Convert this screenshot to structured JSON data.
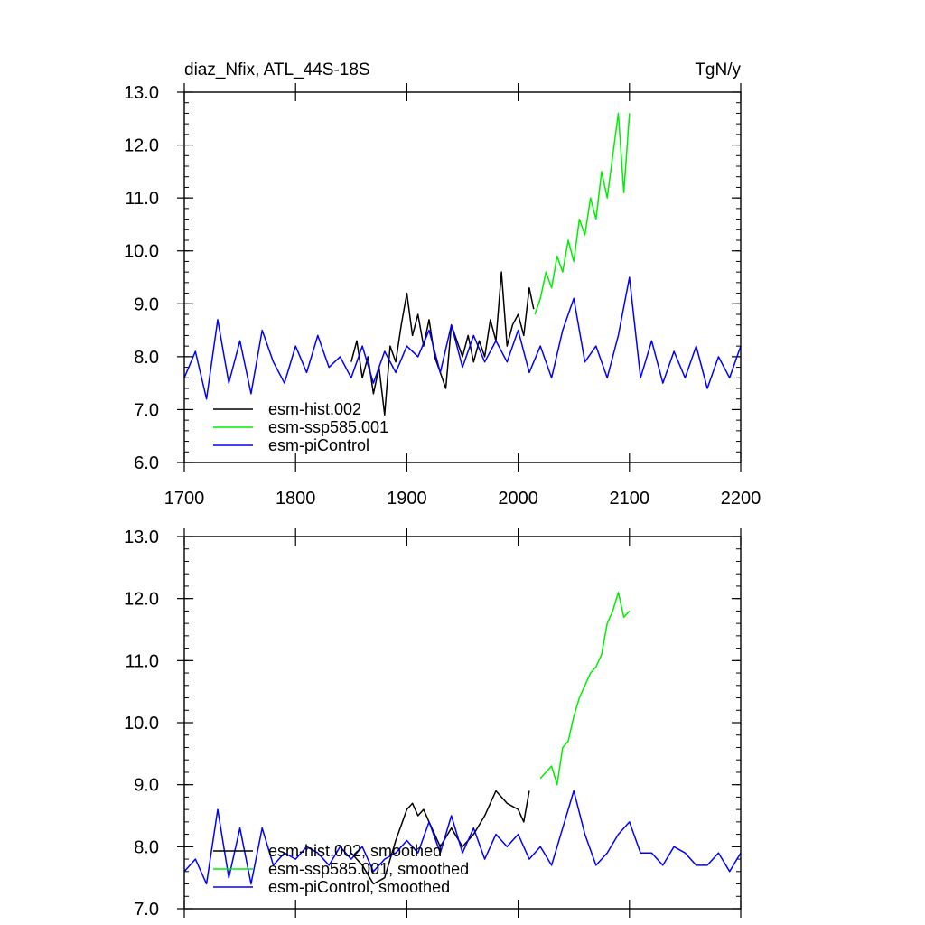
{
  "chart_data": [
    {
      "type": "line",
      "title": "diaz_Nfix, ATL_44S-18S",
      "units": "TgN/y",
      "xlabel": "",
      "ylabel": "",
      "xlim": [
        1700,
        2200
      ],
      "ylim": [
        6.0,
        13.0
      ],
      "x_ticks": [
        1700,
        1800,
        1900,
        2000,
        2100,
        2200
      ],
      "x_tick_labels": [
        "1700",
        "1800",
        "1900",
        "2000",
        "2100",
        "2200"
      ],
      "y_ticks": [
        6.0,
        7.0,
        8.0,
        9.0,
        10.0,
        11.0,
        12.0,
        13.0
      ],
      "y_tick_labels": [
        "6.0",
        "7.0",
        "8.0",
        "9.0",
        "10.0",
        "11.0",
        "12.0",
        "13.0"
      ],
      "legend_position": "lower-left",
      "series": [
        {
          "name": "esm-hist.002",
          "color": "#000000",
          "x": [
            1850,
            1855,
            1860,
            1865,
            1870,
            1875,
            1880,
            1885,
            1890,
            1895,
            1900,
            1905,
            1910,
            1915,
            1920,
            1925,
            1930,
            1935,
            1940,
            1945,
            1950,
            1955,
            1960,
            1965,
            1970,
            1975,
            1980,
            1985,
            1990,
            1995,
            2000,
            2005,
            2010,
            2014
          ],
          "values": [
            7.9,
            8.3,
            7.6,
            8.0,
            7.3,
            7.8,
            6.9,
            8.2,
            7.9,
            8.6,
            9.2,
            8.4,
            8.8,
            8.2,
            8.7,
            8.0,
            7.7,
            7.4,
            8.6,
            8.3,
            8.0,
            8.4,
            7.9,
            8.3,
            8.0,
            8.7,
            8.3,
            9.6,
            8.2,
            8.6,
            8.8,
            8.4,
            9.3,
            8.9
          ]
        },
        {
          "name": "esm-ssp585.001",
          "color": "#00ee00",
          "x": [
            2015,
            2020,
            2025,
            2030,
            2035,
            2040,
            2045,
            2050,
            2055,
            2060,
            2065,
            2070,
            2075,
            2080,
            2085,
            2090,
            2095,
            2100
          ],
          "values": [
            8.8,
            9.1,
            9.6,
            9.3,
            9.9,
            9.6,
            10.2,
            9.8,
            10.6,
            10.3,
            11.0,
            10.6,
            11.5,
            11.0,
            11.8,
            12.6,
            11.1,
            12.6
          ]
        },
        {
          "name": "esm-piControl",
          "color": "#0000ff",
          "x": [
            1700,
            1710,
            1720,
            1730,
            1740,
            1750,
            1760,
            1770,
            1780,
            1790,
            1800,
            1810,
            1820,
            1830,
            1840,
            1850,
            1860,
            1870,
            1880,
            1890,
            1900,
            1910,
            1920,
            1930,
            1940,
            1950,
            1960,
            1970,
            1980,
            1990,
            2000,
            2010,
            2020,
            2030,
            2040,
            2050,
            2060,
            2070,
            2080,
            2090,
            2100,
            2110,
            2120,
            2130,
            2140,
            2150,
            2160,
            2170,
            2180,
            2190,
            2200
          ],
          "values": [
            7.6,
            8.1,
            7.2,
            8.7,
            7.5,
            8.3,
            7.3,
            8.5,
            7.9,
            7.5,
            8.2,
            7.7,
            8.4,
            7.8,
            8.0,
            7.6,
            8.2,
            7.5,
            8.1,
            7.7,
            8.2,
            8.0,
            8.5,
            7.7,
            8.6,
            7.8,
            8.4,
            7.9,
            8.3,
            7.9,
            8.5,
            7.7,
            8.2,
            7.6,
            8.5,
            9.1,
            7.9,
            8.2,
            7.6,
            8.4,
            9.5,
            7.6,
            8.3,
            7.5,
            8.1,
            7.6,
            8.2,
            7.4,
            8.0,
            7.6,
            8.2
          ]
        }
      ]
    },
    {
      "type": "line",
      "title": "",
      "units": "",
      "xlabel": "",
      "ylabel": "",
      "xlim": [
        1700,
        2200
      ],
      "ylim": [
        7.0,
        13.0
      ],
      "y_ticks": [
        7.0,
        8.0,
        9.0,
        10.0,
        11.0,
        12.0,
        13.0
      ],
      "y_tick_labels": [
        "7.0",
        "8.0",
        "9.0",
        "10.0",
        "11.0",
        "12.0",
        "13.0"
      ],
      "legend_position": "lower-left",
      "series": [
        {
          "name": "esm-hist.002, smoothed",
          "color": "#000000",
          "x": [
            1850,
            1860,
            1870,
            1880,
            1890,
            1900,
            1905,
            1910,
            1915,
            1920,
            1930,
            1940,
            1950,
            1960,
            1970,
            1980,
            1990,
            2000,
            2005,
            2010
          ],
          "values": [
            7.9,
            7.7,
            7.4,
            7.5,
            8.1,
            8.6,
            8.7,
            8.5,
            8.6,
            8.4,
            8.0,
            8.3,
            8.0,
            8.2,
            8.5,
            8.9,
            8.7,
            8.6,
            8.4,
            8.9
          ]
        },
        {
          "name": "esm-ssp585.001, smoothed",
          "color": "#00ee00",
          "x": [
            2020,
            2025,
            2030,
            2035,
            2040,
            2045,
            2050,
            2055,
            2060,
            2065,
            2070,
            2075,
            2080,
            2085,
            2090,
            2095,
            2100
          ],
          "values": [
            9.1,
            9.2,
            9.3,
            9.0,
            9.6,
            9.7,
            10.1,
            10.4,
            10.6,
            10.8,
            10.9,
            11.1,
            11.6,
            11.8,
            12.1,
            11.7,
            11.8
          ]
        },
        {
          "name": "esm-piControl, smoothed",
          "color": "#0000ff",
          "x": [
            1700,
            1710,
            1720,
            1730,
            1740,
            1750,
            1760,
            1770,
            1780,
            1790,
            1800,
            1810,
            1820,
            1830,
            1840,
            1850,
            1860,
            1870,
            1880,
            1890,
            1900,
            1910,
            1920,
            1930,
            1940,
            1950,
            1960,
            1970,
            1980,
            1990,
            2000,
            2010,
            2020,
            2030,
            2040,
            2050,
            2060,
            2070,
            2080,
            2090,
            2100,
            2110,
            2120,
            2130,
            2140,
            2150,
            2160,
            2170,
            2180,
            2190,
            2200
          ],
          "values": [
            7.6,
            7.8,
            7.4,
            8.6,
            7.5,
            8.3,
            7.4,
            8.3,
            7.7,
            7.9,
            7.8,
            8.0,
            7.9,
            7.7,
            8.0,
            7.8,
            8.0,
            7.6,
            7.8,
            7.9,
            8.1,
            7.9,
            8.4,
            7.9,
            8.5,
            7.9,
            8.3,
            7.8,
            8.2,
            8.0,
            8.2,
            7.8,
            8.0,
            7.7,
            8.3,
            8.9,
            8.2,
            7.7,
            7.9,
            8.2,
            8.4,
            7.9,
            7.9,
            7.7,
            8.0,
            7.9,
            7.7,
            7.7,
            7.9,
            7.6,
            7.9
          ]
        }
      ]
    }
  ]
}
